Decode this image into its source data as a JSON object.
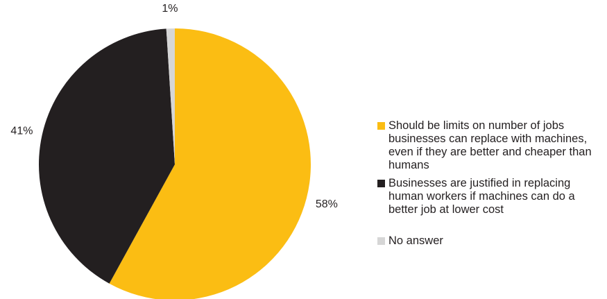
{
  "chart_data": {
    "type": "pie",
    "categories": [
      "Should be limits on number of jobs businesses can replace with machines, even if they are better and cheaper than humans",
      "Businesses are justified in replacing human workers if machines can do a better job at lower cost",
      "No answer"
    ],
    "values": [
      58,
      41,
      1
    ],
    "labels": [
      "58%",
      "41%",
      "1%"
    ],
    "colors": [
      "#fbbd13",
      "#231f20",
      "#d6d6d6"
    ],
    "legend_position": "right"
  }
}
